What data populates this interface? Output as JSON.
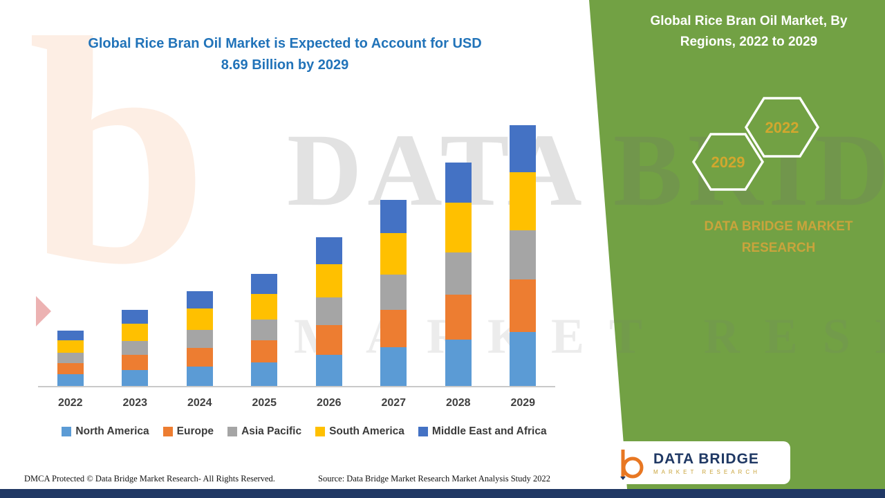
{
  "title": {
    "line1": "Global Rice Bran Oil Market is Expected to Account for USD",
    "line2": "8.69 Billion by 2029"
  },
  "panel": {
    "title": "Global Rice Bran Oil Market, By Regions, 2022 to 2029",
    "hexagons": [
      "2029",
      "2022"
    ],
    "brand": "DATA BRIDGE MARKET RESEARCH",
    "background_color": "#72A144",
    "hexagon_text_color": "#D2A72E",
    "brand_color": "#C9A43C"
  },
  "watermark": {
    "line1": "DATA BRIDGE",
    "line2": "MARKET RESEARCH"
  },
  "logo": {
    "name": "DATA BRIDGE",
    "sub": "MARKET RESEARCH"
  },
  "footer": {
    "dmca": "DMCA Protected © Data Bridge Market Research- All Rights Reserved.",
    "source": "Source: Data Bridge Market Research Market Analysis Study 2022"
  },
  "colors": {
    "title_blue": "#2173B9",
    "bottom_strip_navy": "#203864",
    "axis_gray": "#C9C9C9"
  },
  "chart_data": {
    "type": "bar",
    "stacked": true,
    "title": "Global Rice Bran Oil Market is Expected to Account for USD 8.69 Billion by 2029",
    "unit": "USD Billion",
    "xlabel": "",
    "ylabel": "",
    "ylim": [
      0,
      9
    ],
    "grid": false,
    "legend_position": "bottom",
    "categories": [
      "2022",
      "2023",
      "2024",
      "2025",
      "2026",
      "2027",
      "2028",
      "2029"
    ],
    "series": [
      {
        "name": "North America",
        "color": "#5B9BD5",
        "values": [
          0.39,
          0.53,
          0.65,
          0.78,
          1.04,
          1.29,
          1.54,
          1.8
        ]
      },
      {
        "name": "Europe",
        "color": "#ED7D31",
        "values": [
          0.37,
          0.51,
          0.62,
          0.74,
          0.99,
          1.24,
          1.5,
          1.75
        ]
      },
      {
        "name": "Asia Pacific",
        "color": "#A5A5A5",
        "values": [
          0.35,
          0.46,
          0.6,
          0.69,
          0.92,
          1.18,
          1.41,
          1.64
        ]
      },
      {
        "name": "South America",
        "color": "#FFC000",
        "values": [
          0.41,
          0.58,
          0.71,
          0.85,
          1.11,
          1.38,
          1.66,
          1.94
        ]
      },
      {
        "name": "Middle East and Africa",
        "color": "#4472C4",
        "values": [
          0.32,
          0.46,
          0.58,
          0.69,
          0.9,
          1.13,
          1.34,
          1.57
        ]
      }
    ],
    "totals": [
      1.84,
      2.54,
      3.16,
      3.75,
      4.96,
      6.22,
      7.45,
      8.7
    ]
  }
}
